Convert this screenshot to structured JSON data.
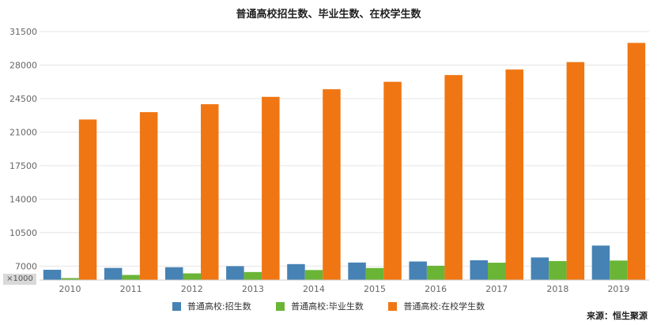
{
  "title": "普通高校招生数、毕业生数、在校学生数",
  "unit_label": "×1000",
  "source": "来源：恒生聚源",
  "colors": {
    "enrollment": "#4682b4",
    "graduates": "#6ab536",
    "students": "#f07613",
    "grid": "#e4e4e4",
    "axis": "#cccccc",
    "tick": "#666666"
  },
  "chart_data": {
    "type": "bar",
    "title": "普通高校招生数、毕业生数、在校学生数",
    "categories": [
      "2010",
      "2011",
      "2012",
      "2013",
      "2014",
      "2015",
      "2016",
      "2017",
      "2018",
      "2019"
    ],
    "series": [
      {
        "name": "普通高校:招生数",
        "values": [
          6620,
          6815,
          6888,
          6998,
          7214,
          7378,
          7486,
          7615,
          7909,
          9150
        ]
      },
      {
        "name": "普通高校:毕业生数",
        "values": [
          5754,
          6082,
          6247,
          6387,
          6594,
          6808,
          7041,
          7358,
          7533,
          7585
        ]
      },
      {
        "name": "普通高校:在校学生数",
        "values": [
          22318,
          23085,
          23913,
          24680,
          25476,
          26253,
          26958,
          27536,
          28310,
          30316
        ]
      }
    ],
    "ylim": [
      5550,
      31500
    ],
    "yticks": [
      "7000",
      "10500",
      "14000",
      "17500",
      "21000",
      "24500",
      "28000",
      "31500"
    ],
    "grid": true,
    "legend_position": "bottom-center"
  }
}
